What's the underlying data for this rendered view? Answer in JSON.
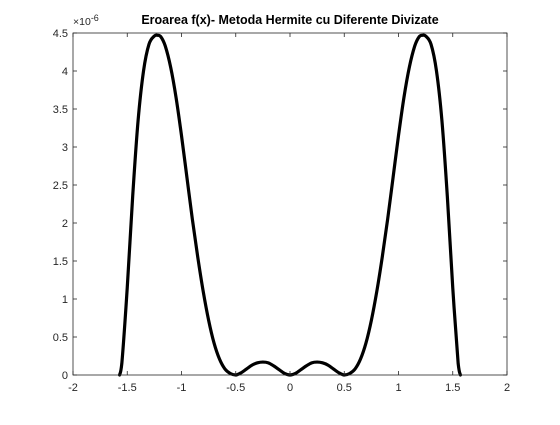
{
  "chart_data": {
    "type": "line",
    "title": "Eroarea f(x)- Metoda Hermite cu Diferente Divizate",
    "xlabel": "",
    "ylabel": "",
    "y_exponent_label": "×10",
    "y_exponent_power": "-6",
    "xlim": [
      -2,
      2
    ],
    "ylim": [
      0,
      4.5
    ],
    "x_ticks": [
      -2,
      -1.5,
      -1,
      -0.5,
      0,
      0.5,
      1,
      1.5,
      2
    ],
    "x_tick_labels": [
      "-2",
      "-1.5",
      "-1",
      "-0.5",
      "0",
      "0.5",
      "1",
      "1.5",
      "2"
    ],
    "y_ticks": [
      0,
      0.5,
      1,
      1.5,
      2,
      2.5,
      3,
      3.5,
      4,
      4.5
    ],
    "y_tick_labels": [
      "0",
      "0.5",
      "1",
      "1.5",
      "2",
      "2.5",
      "3",
      "3.5",
      "4",
      "4.5"
    ],
    "grid": false,
    "box": true,
    "series": [
      {
        "color": "#000000",
        "x": [
          -1.5708,
          -1.55,
          -1.5,
          -1.45,
          -1.4,
          -1.35,
          -1.3,
          -1.25,
          -1.22,
          -1.19,
          -1.15,
          -1.1,
          -1.05,
          -1.0,
          -0.95,
          -0.9,
          -0.85,
          -0.8,
          -0.75,
          -0.7,
          -0.65,
          -0.6,
          -0.55,
          -0.5,
          -0.45,
          -0.4,
          -0.35,
          -0.3,
          -0.25,
          -0.2,
          -0.15,
          -0.1,
          -0.05,
          0.0,
          0.05,
          0.1,
          0.15,
          0.2,
          0.25,
          0.3,
          0.35,
          0.4,
          0.45,
          0.5,
          0.55,
          0.6,
          0.65,
          0.7,
          0.75,
          0.8,
          0.85,
          0.9,
          0.95,
          1.0,
          1.05,
          1.1,
          1.15,
          1.19,
          1.22,
          1.25,
          1.3,
          1.35,
          1.4,
          1.45,
          1.5,
          1.55,
          1.5708
        ],
        "y": [
          0.0,
          0.15,
          1.15,
          2.35,
          3.35,
          4.0,
          4.35,
          4.46,
          4.47,
          4.45,
          4.33,
          4.05,
          3.65,
          3.15,
          2.6,
          2.05,
          1.55,
          1.1,
          0.72,
          0.42,
          0.21,
          0.08,
          0.02,
          0.0,
          0.03,
          0.08,
          0.13,
          0.16,
          0.17,
          0.16,
          0.12,
          0.07,
          0.02,
          0.0,
          0.02,
          0.07,
          0.12,
          0.16,
          0.17,
          0.16,
          0.13,
          0.08,
          0.03,
          0.0,
          0.02,
          0.08,
          0.21,
          0.42,
          0.72,
          1.1,
          1.55,
          2.05,
          2.6,
          3.15,
          3.65,
          4.05,
          4.33,
          4.45,
          4.47,
          4.46,
          4.35,
          4.0,
          3.35,
          2.35,
          1.15,
          0.15,
          0.0
        ]
      }
    ]
  }
}
